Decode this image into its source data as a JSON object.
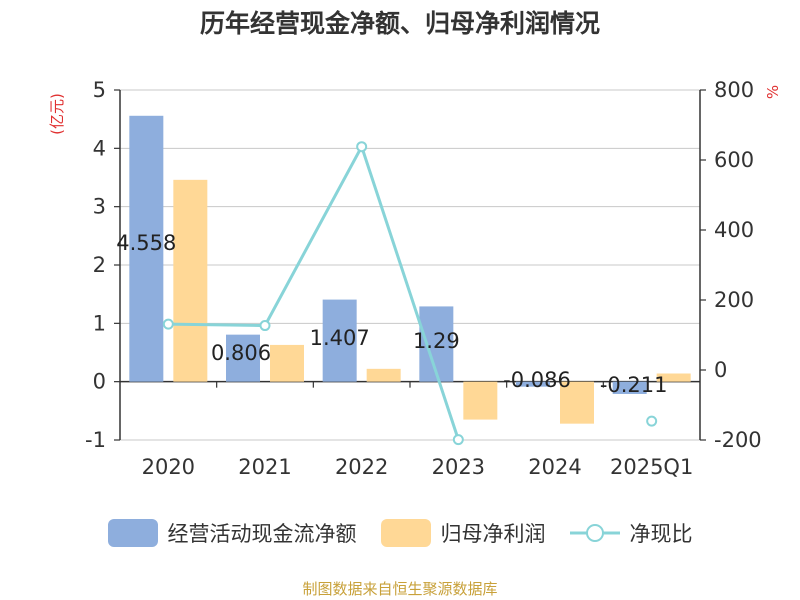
{
  "chart_data": {
    "type": "bar",
    "title": "历年经营现金净额、归母净利润情况",
    "categories": [
      "2020",
      "2021",
      "2022",
      "2023",
      "2024",
      "2025Q1"
    ],
    "series": [
      {
        "name": "经营活动现金流净额",
        "type": "bar",
        "axis": "left",
        "color": "#8eaedd",
        "values": [
          4.558,
          0.806,
          1.407,
          1.29,
          -0.086,
          -0.211
        ]
      },
      {
        "name": "归母净利润",
        "type": "bar",
        "axis": "left",
        "color": "#ffd896",
        "values": [
          3.46,
          0.63,
          0.22,
          -0.65,
          -0.72,
          0.14
        ]
      },
      {
        "name": "净现比",
        "type": "line",
        "axis": "right",
        "color": "#88d4d8",
        "values": [
          131,
          127,
          638,
          -199,
          null,
          -146
        ]
      }
    ],
    "data_labels": [
      "4.558",
      "0.806",
      "1.407",
      "1.29",
      "-0.086",
      "-0.211"
    ],
    "left_axis": {
      "label": "(亿元)",
      "ylim": [
        -1,
        5
      ],
      "ticks": [
        "-1",
        "0",
        "1",
        "2",
        "3",
        "4",
        "5"
      ]
    },
    "right_axis": {
      "label": "%",
      "ylim": [
        -200,
        800
      ],
      "ticks": [
        "-200",
        "0",
        "200",
        "400",
        "600",
        "800"
      ]
    },
    "grid": true,
    "legend_position": "bottom"
  },
  "source": "制图数据来自恒生聚源数据库"
}
